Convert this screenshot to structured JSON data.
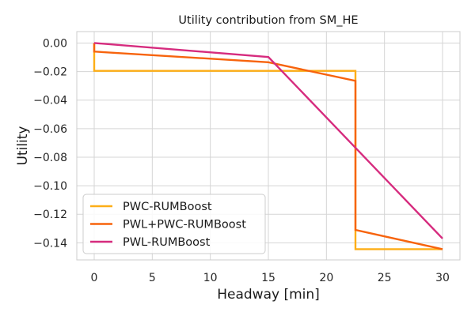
{
  "chart_data": {
    "type": "line",
    "title": "Utility contribution from SM_HE",
    "xlabel": "Headway [min]",
    "ylabel": "Utility",
    "xlim": [
      -1.5,
      31.5
    ],
    "ylim": [
      -0.152,
      0.008
    ],
    "xticks": [
      0,
      5,
      10,
      15,
      20,
      25,
      30
    ],
    "yticks": [
      0.0,
      -0.02,
      -0.04,
      -0.06,
      -0.08,
      -0.1,
      -0.12,
      -0.14
    ],
    "ytick_labels": [
      "0.00",
      "−0.02",
      "−0.04",
      "−0.06",
      "−0.08",
      "−0.10",
      "−0.12",
      "−0.14"
    ],
    "grid": true,
    "legend_position": "lower-left",
    "series": [
      {
        "name": "PWC-RUMBoost",
        "color": "#fdae17",
        "x": [
          0,
          0,
          22.5,
          22.5,
          30
        ],
        "y": [
          0.0,
          -0.0195,
          -0.0195,
          -0.1445,
          -0.1445
        ]
      },
      {
        "name": "PWL+PWC-RUMBoost",
        "color": "#f7630c",
        "x": [
          0,
          0,
          15,
          22.5,
          22.5,
          30
        ],
        "y": [
          0.0,
          -0.006,
          -0.0135,
          -0.0265,
          -0.131,
          -0.1445
        ]
      },
      {
        "name": "PWL-RUMBoost",
        "color": "#d62b7e",
        "x": [
          0,
          15,
          30
        ],
        "y": [
          0.0,
          -0.0098,
          -0.137
        ]
      }
    ]
  }
}
